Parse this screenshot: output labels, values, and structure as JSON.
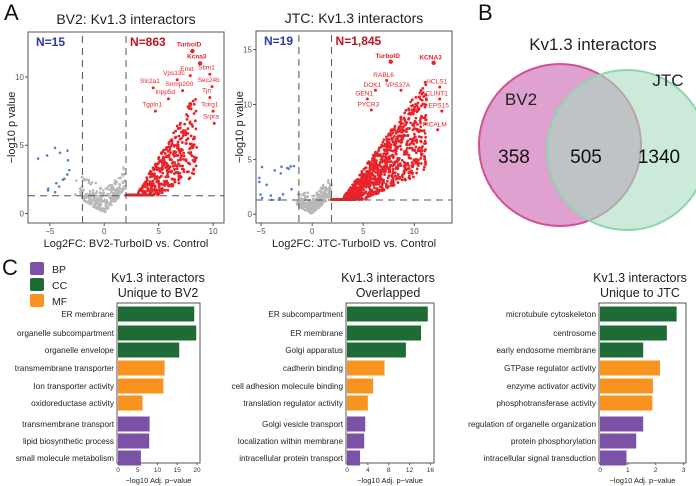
{
  "panels": {
    "a": "A",
    "b": "B",
    "c": "C"
  },
  "chart_data": [
    {
      "type": "scatter",
      "title": "BV2: Kv1.3 interactors",
      "xlabel": "Log2FC: BV2-TurboID vs. Control",
      "ylabel": "−log10 p value",
      "xlim": [
        -7,
        11
      ],
      "ylim": [
        -0.7,
        13.3
      ],
      "xticks": [
        -5,
        0,
        5,
        10
      ],
      "yticks": [
        0,
        5,
        10
      ],
      "thresholds": {
        "log2fc": [
          -2,
          2
        ],
        "neglog10p": 1.3
      },
      "counts": {
        "down": "N=15",
        "up": "N=863"
      },
      "n_down": 15,
      "n_up": 863,
      "colors": {
        "up": "#e8242a",
        "down": "#5b7bd5",
        "ns": "#b8b8b8"
      },
      "labeled_genes": [
        {
          "gene": "TurboID",
          "x": 7.8,
          "y": 12.4,
          "bold": true
        },
        {
          "gene": "Kcna3",
          "x": 8.5,
          "y": 11.5,
          "bold": true
        },
        {
          "gene": "Stim1",
          "x": 9.4,
          "y": 10.7
        },
        {
          "gene": "Emd",
          "x": 7.6,
          "y": 10.6
        },
        {
          "gene": "Vps13c",
          "x": 6.4,
          "y": 10.3
        },
        {
          "gene": "Sec24b",
          "x": 9.6,
          "y": 9.8
        },
        {
          "gene": "Slc2a1",
          "x": 4.2,
          "y": 9.7
        },
        {
          "gene": "Snmp200",
          "x": 6.9,
          "y": 9.5
        },
        {
          "gene": "Tjn",
          "x": 9.4,
          "y": 9.0
        },
        {
          "gene": "Inpp5d",
          "x": 5.6,
          "y": 8.9
        },
        {
          "gene": "Tgpln1",
          "x": 4.4,
          "y": 8.0
        },
        {
          "gene": "Tcirg1",
          "x": 9.7,
          "y": 8.0
        },
        {
          "gene": "Srpra",
          "x": 9.8,
          "y": 7.1
        }
      ]
    },
    {
      "type": "scatter",
      "title": "JTC: Kv1.3 interactors",
      "xlabel": "Log2FC: JTC-TurboID vs. Control",
      "ylabel": "−log10 p value",
      "xlim": [
        -5.5,
        13.7
      ],
      "ylim": [
        -0.8,
        16.7
      ],
      "xticks": [
        -5,
        0,
        5,
        10
      ],
      "yticks": [
        0,
        5,
        10,
        15
      ],
      "thresholds": {
        "log2fc": [
          -1.3,
          1.9
        ],
        "neglog10p": 1.3
      },
      "counts": {
        "down": "N=19",
        "up": "N=1,845"
      },
      "n_down": 19,
      "n_up": 1845,
      "colors": {
        "up": "#e8242a",
        "down": "#5b7bd5",
        "ns": "#b8b8b8"
      },
      "labeled_genes": [
        {
          "gene": "TurboID",
          "x": 7.4,
          "y": 14.4,
          "bold": true
        },
        {
          "gene": "KCNA3",
          "x": 11.6,
          "y": 14.3,
          "bold": true
        },
        {
          "gene": "RABL6",
          "x": 7.0,
          "y": 12.7
        },
        {
          "gene": "DOK1",
          "x": 5.9,
          "y": 11.8
        },
        {
          "gene": "VPS37A",
          "x": 8.4,
          "y": 11.8
        },
        {
          "gene": "HCLS1",
          "x": 12.2,
          "y": 12.1
        },
        {
          "gene": "GEN1",
          "x": 5.1,
          "y": 11.0
        },
        {
          "gene": "CLINT1",
          "x": 12.2,
          "y": 11.0
        },
        {
          "gene": "PYCR3",
          "x": 5.5,
          "y": 10.0
        },
        {
          "gene": "EPS15",
          "x": 12.4,
          "y": 9.9
        },
        {
          "gene": "PICALM",
          "x": 12.0,
          "y": 8.2
        }
      ]
    },
    {
      "type": "venn",
      "title": "Kv1.3 interactors",
      "sets": [
        {
          "name": "BV2",
          "color": "#d890c8"
        },
        {
          "name": "JTC",
          "color": "#a8dcc0"
        }
      ],
      "values": {
        "bv2_only": "358",
        "overlap": "505",
        "jtc_only": "1340"
      }
    },
    {
      "type": "bar",
      "title": [
        "Kv1.3 interactors",
        "Unique to BV2"
      ],
      "xlabel": "−log10 Adj. p−value",
      "xlim": [
        0,
        20.5
      ],
      "xticks": [
        0,
        5,
        10,
        15,
        20
      ],
      "categories": [
        "ER membrane",
        "organelle subcompartment",
        "organelle envelope",
        "transmembrane transporter",
        "Ion transporter activity",
        "oxidoreductase activity",
        "transmembrane transport",
        "lipid biosynthetic process",
        "small molecule metabolism"
      ],
      "groups": [
        "CC",
        "CC",
        "CC",
        "MF",
        "MF",
        "MF",
        "BP",
        "BP",
        "BP"
      ],
      "values": [
        19.3,
        19.8,
        15.5,
        11.8,
        11.5,
        6.2,
        8.0,
        7.9,
        5.8
      ]
    },
    {
      "type": "bar",
      "title": [
        "Kv1.3 interactors",
        "Overlapped"
      ],
      "xlabel": "−log10 Adj. p−value",
      "xlim": [
        0,
        16.5
      ],
      "xticks": [
        0,
        4,
        8,
        12,
        16
      ],
      "categories": [
        "ER subcompartment",
        "ER membrane",
        "Golgi apparatus",
        "cadherin binding",
        "cell adhesion molecule binding",
        "translation regulator activity",
        "Golgi vesicle transport",
        "localization within membrane",
        "intracellular protein transport"
      ],
      "groups": [
        "CC",
        "CC",
        "CC",
        "MF",
        "MF",
        "MF",
        "BP",
        "BP",
        "BP"
      ],
      "values": [
        15.5,
        14.2,
        11.3,
        7.2,
        5.0,
        4.0,
        3.5,
        3.3,
        2.5
      ]
    },
    {
      "type": "bar",
      "title": [
        "Kv1.3 interactors",
        "Unique to JTC"
      ],
      "xlabel": "−log10 Adj. p−value",
      "xlim": [
        0,
        3.05
      ],
      "xticks": [
        0,
        1,
        2,
        3
      ],
      "categories": [
        "microtubule cytoskeleton",
        "centrosome",
        "early endosome membrane",
        "GTPase regulator activity",
        "enzyme activator activity",
        "phosphotransferase activity",
        "regulation of organelle organization",
        "protein phosphorylation",
        "intracellular signal transduction"
      ],
      "large_labels": [
        0,
        1,
        4,
        7
      ],
      "groups": [
        "CC",
        "CC",
        "CC",
        "MF",
        "MF",
        "MF",
        "BP",
        "BP",
        "BP"
      ],
      "values": [
        2.75,
        2.4,
        1.55,
        2.15,
        1.9,
        1.88,
        1.55,
        1.3,
        0.95
      ]
    }
  ],
  "legend": [
    {
      "label": "BP",
      "color": "#7b52a6"
    },
    {
      "label": "CC",
      "color": "#1f6b35"
    },
    {
      "label": "MF",
      "color": "#f7931e"
    }
  ]
}
